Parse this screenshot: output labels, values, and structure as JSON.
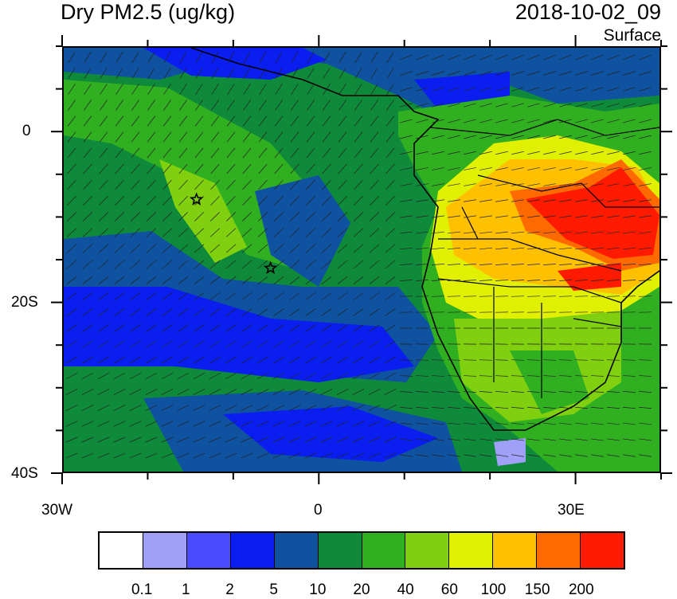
{
  "title": "Dry PM2.5 (ug/kg)",
  "datetime": "2018-10-02_09",
  "level": "Surface",
  "axes": {
    "x_labels": [
      "30W",
      "0",
      "30E"
    ],
    "y_labels": [
      "0",
      "20S",
      "40S"
    ],
    "lon_range": [
      -30,
      40
    ],
    "lat_range": [
      -40,
      10
    ]
  },
  "colorbar": {
    "colors": [
      "#ffffff",
      "#a0a0f8",
      "#4a4aff",
      "#0a1ef0",
      "#0f52a0",
      "#0f8a3a",
      "#30b020",
      "#80d010",
      "#e0f000",
      "#ffc000",
      "#ff6a00",
      "#ff1a00"
    ],
    "labels": [
      "0.1",
      "1",
      "2",
      "5",
      "10",
      "20",
      "40",
      "60",
      "100",
      "150",
      "200"
    ]
  },
  "markers": [
    {
      "name": "star",
      "lon": -14.4,
      "lat": -7.9
    },
    {
      "name": "star",
      "lon": -5.7,
      "lat": -16.0
    }
  ]
}
